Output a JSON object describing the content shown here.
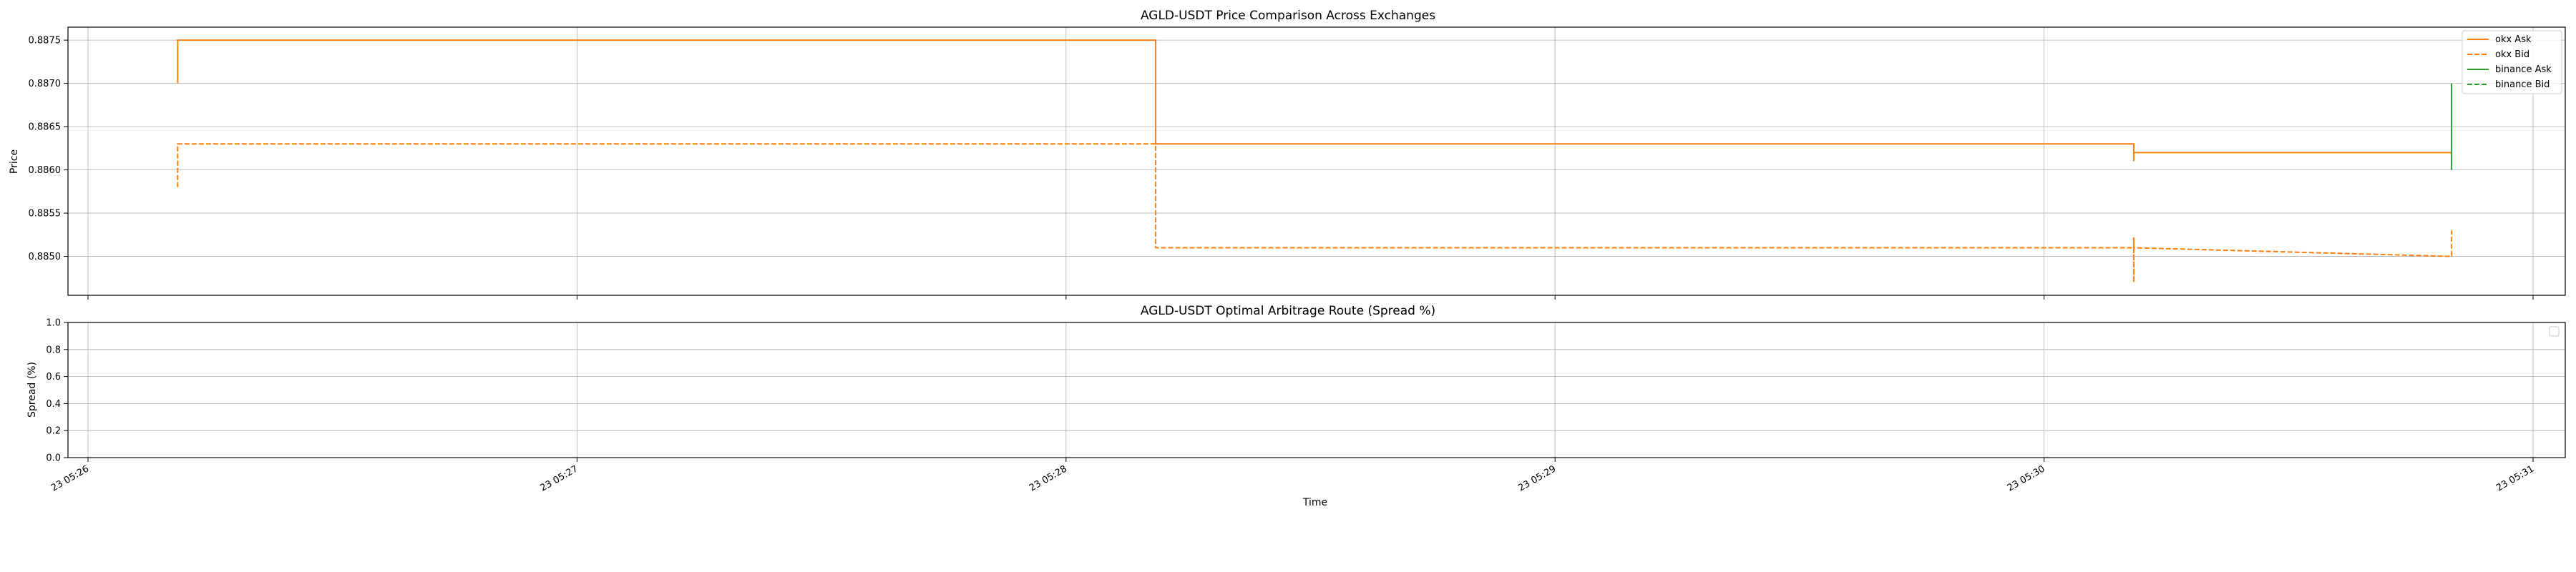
{
  "chart_data": [
    {
      "type": "line",
      "title": "AGLD-USDT Price Comparison Across Exchanges",
      "xlabel": "",
      "ylabel": "Price",
      "xlim": [
        "05:26:00",
        "05:31:00"
      ],
      "ylim": [
        0.88455,
        0.88765
      ],
      "yticks": [
        "0.8850",
        "0.8855",
        "0.8860",
        "0.8865",
        "0.8870",
        "0.8875"
      ],
      "grid": true,
      "legend_position": "top-right",
      "legend": [
        "okx Ask",
        "okx Bid",
        "binance Ask",
        "binance Bid"
      ],
      "colors": {
        "okx": "#ff7f0e",
        "binance": "#2ca02c"
      },
      "series": [
        {
          "name": "okx Ask",
          "color": "#ff7f0e",
          "style": "solid",
          "step": true,
          "points": [
            [
              "05:26:11",
              0.887
            ],
            [
              "05:26:11",
              0.8875
            ],
            [
              "05:28:11",
              0.8875
            ],
            [
              "05:28:11",
              0.8869
            ],
            [
              "05:28:11",
              0.8863
            ],
            [
              "05:30:11",
              0.8863
            ],
            [
              "05:30:11",
              0.8861
            ],
            [
              "05:30:11",
              0.8862
            ],
            [
              "05:30:50",
              0.8862
            ]
          ]
        },
        {
          "name": "okx Bid",
          "color": "#ff7f0e",
          "style": "dashed",
          "step": true,
          "points": [
            [
              "05:26:11",
              0.8858
            ],
            [
              "05:26:11",
              0.8863
            ],
            [
              "05:28:11",
              0.8863
            ],
            [
              "05:28:11",
              0.8851
            ],
            [
              "05:30:11",
              0.8851
            ],
            [
              "05:30:11",
              0.8847
            ],
            [
              "05:30:11",
              0.88522
            ],
            [
              "05:30:11",
              0.8851
            ],
            [
              "05:30:50",
              0.885
            ],
            [
              "05:30:50",
              0.8853
            ]
          ]
        },
        {
          "name": "binance Ask",
          "color": "#2ca02c",
          "style": "solid",
          "step": true,
          "points": [
            [
              "05:30:50",
              0.886
            ],
            [
              "05:30:50",
              0.887
            ]
          ]
        },
        {
          "name": "binance Bid",
          "color": "#2ca02c",
          "style": "dashed",
          "step": true,
          "points": []
        }
      ]
    },
    {
      "type": "line",
      "title": "AGLD-USDT Optimal Arbitrage Route (Spread %)",
      "xlabel": "Time",
      "ylabel": "Spread (%)",
      "xlim": [
        "05:26:00",
        "05:31:00"
      ],
      "ylim": [
        0.0,
        1.0
      ],
      "yticks": [
        "0.0",
        "0.2",
        "0.4",
        "0.6",
        "0.8",
        "1.0"
      ],
      "xticks": [
        "23 05:26",
        "23 05:27",
        "23 05:28",
        "23 05:29",
        "23 05:30",
        "23 05:31"
      ],
      "grid": true,
      "legend_position": "top-right",
      "series": []
    }
  ]
}
